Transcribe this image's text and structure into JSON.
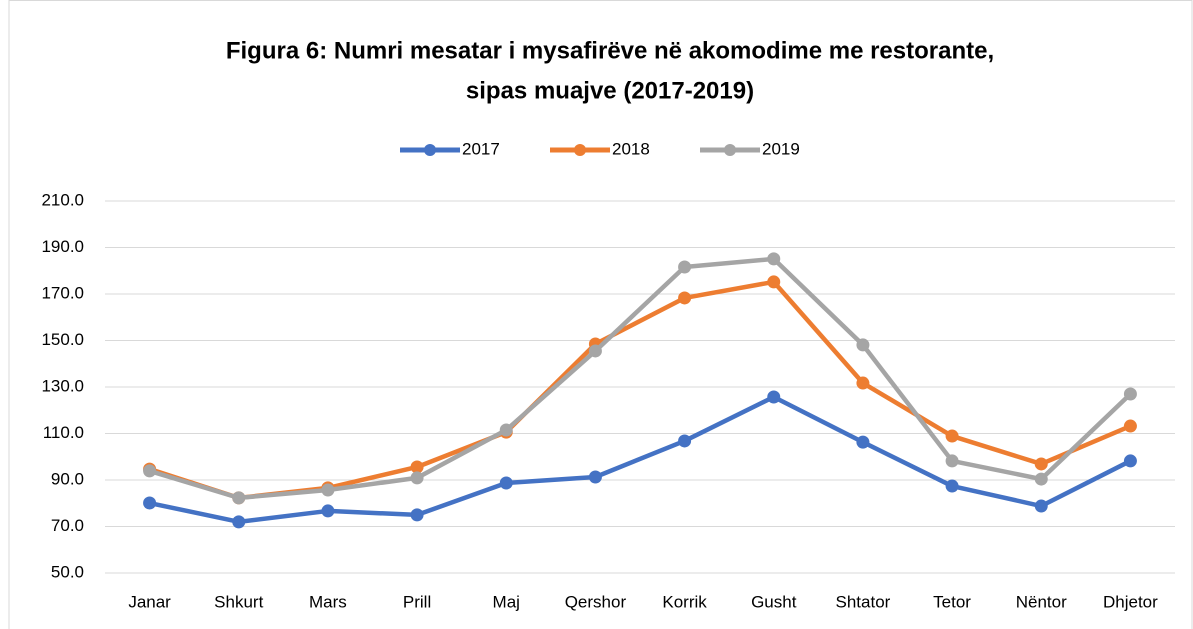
{
  "chart_data": {
    "type": "line",
    "title": [
      "Figura 6: Numri mesatar i mysafirëve në akomodime me restorante,",
      "sipas muajve (2017-2019)"
    ],
    "categories": [
      "Janar",
      "Shkurt",
      "Mars",
      "Prill",
      "Maj",
      "Qershor",
      "Korrik",
      "Gusht",
      "Shtator",
      "Tetor",
      "Nëntor",
      "Dhjetor"
    ],
    "series": [
      {
        "name": "2017",
        "color": "#4472c4",
        "values": [
          80.1,
          72.0,
          76.7,
          75.0,
          88.7,
          91.3,
          106.8,
          125.7,
          106.3,
          87.4,
          78.8,
          98.2
        ]
      },
      {
        "name": "2018",
        "color": "#ed7d31",
        "values": [
          94.7,
          82.3,
          86.6,
          95.6,
          110.6,
          148.5,
          168.3,
          175.2,
          131.7,
          108.9,
          96.9,
          113.2
        ]
      },
      {
        "name": "2019",
        "color": "#a5a5a5",
        "values": [
          93.9,
          82.3,
          85.7,
          90.9,
          111.5,
          145.5,
          181.6,
          185.1,
          148.1,
          98.2,
          90.4,
          127.0
        ]
      }
    ],
    "ylim": [
      50,
      210
    ],
    "yticks": [
      {
        "value": 50,
        "label": "50.0"
      },
      {
        "value": 70,
        "label": "70.0"
      },
      {
        "value": 90,
        "label": "90.0"
      },
      {
        "value": 110,
        "label": "110.0"
      },
      {
        "value": 130,
        "label": "130.0"
      },
      {
        "value": 150,
        "label": "150.0"
      },
      {
        "value": 170,
        "label": "170.0"
      },
      {
        "value": 190,
        "label": "190.0"
      },
      {
        "value": 210,
        "label": "210.0"
      }
    ],
    "grid": true,
    "legend": "top"
  }
}
